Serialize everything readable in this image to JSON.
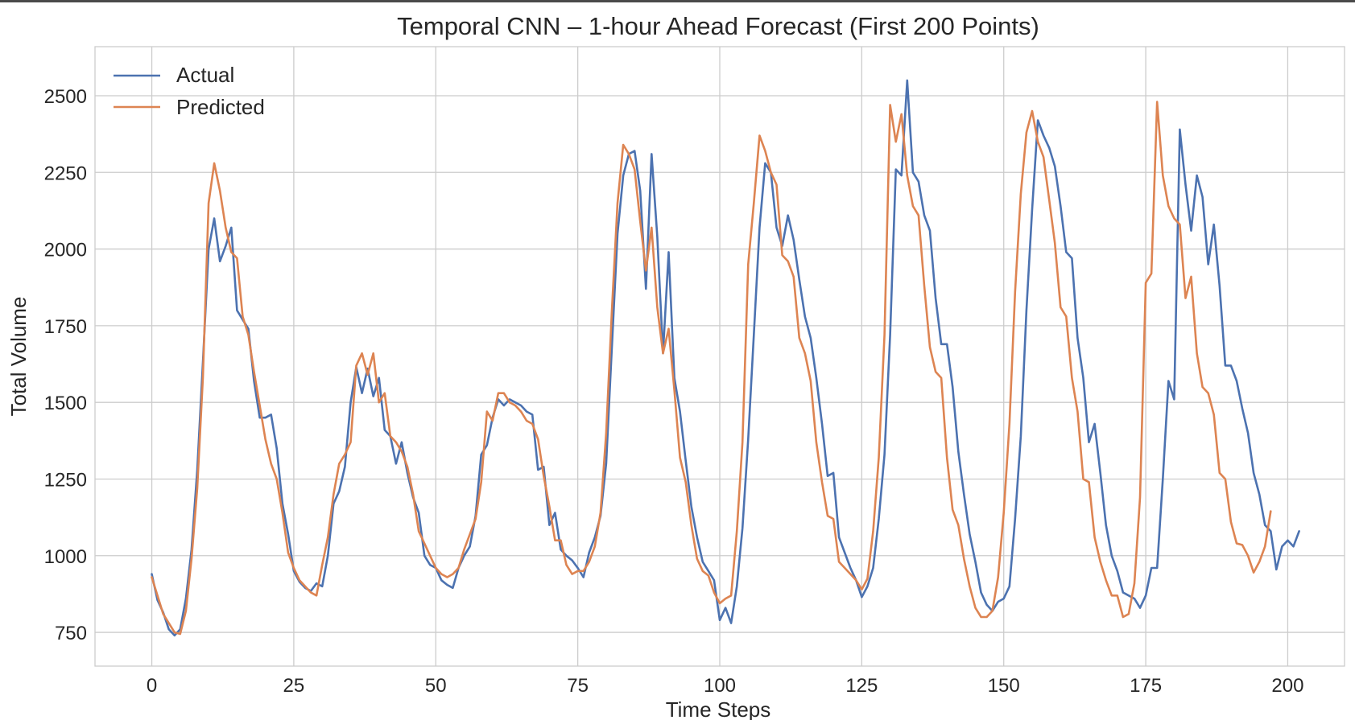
{
  "chart_data": {
    "type": "line",
    "title": "Temporal CNN – 1-hour Ahead Forecast (First 200 Points)",
    "xlabel": "Time Steps",
    "ylabel": "Total Volume",
    "xlim": [
      -10,
      210
    ],
    "ylim": [
      640,
      2660
    ],
    "xticks": [
      0,
      25,
      50,
      75,
      100,
      125,
      150,
      175,
      200
    ],
    "yticks": [
      750,
      1000,
      1250,
      1500,
      1750,
      2000,
      2250,
      2500
    ],
    "grid": true,
    "legend_position": "top-left",
    "series": [
      {
        "name": "Actual",
        "color": "#4c72b0",
        "values": [
          940,
          855,
          815,
          760,
          740,
          760,
          860,
          1020,
          1280,
          1630,
          2000,
          2100,
          1960,
          2010,
          2070,
          1800,
          1770,
          1740,
          1570,
          1450,
          1450,
          1460,
          1350,
          1170,
          1070,
          950,
          915,
          895,
          885,
          910,
          900,
          1000,
          1170,
          1210,
          1290,
          1500,
          1615,
          1530,
          1610,
          1520,
          1580,
          1410,
          1390,
          1300,
          1370,
          1270,
          1190,
          1140,
          1000,
          970,
          960,
          920,
          905,
          895,
          960,
          1000,
          1030,
          1130,
          1330,
          1360,
          1450,
          1510,
          1490,
          1510,
          1500,
          1490,
          1470,
          1460,
          1280,
          1290,
          1100,
          1140,
          1020,
          1000,
          985,
          960,
          930,
          1010,
          1060,
          1130,
          1300,
          1680,
          2050,
          2240,
          2310,
          2320,
          2190,
          1870,
          2310,
          2040,
          1660,
          1990,
          1580,
          1470,
          1310,
          1160,
          1060,
          980,
          950,
          920,
          790,
          830,
          780,
          900,
          1090,
          1380,
          1720,
          2070,
          2280,
          2250,
          2070,
          2010,
          2110,
          2030,
          1900,
          1780,
          1710,
          1580,
          1430,
          1260,
          1270,
          1060,
          1010,
          960,
          920,
          865,
          900,
          960,
          1120,
          1330,
          1720,
          2260,
          2240,
          2550,
          2250,
          2220,
          2110,
          2060,
          1840,
          1690,
          1690,
          1550,
          1340,
          1200,
          1070,
          980,
          880,
          840,
          820,
          850,
          860,
          900,
          1120,
          1390,
          1800,
          2130,
          2420,
          2370,
          2330,
          2270,
          2140,
          1990,
          1970,
          1710,
          1580,
          1370,
          1430,
          1270,
          1100,
          1000,
          950,
          880,
          870,
          860,
          830,
          870,
          960,
          960,
          1250,
          1570,
          1510,
          2390,
          2210,
          2060,
          2240,
          2170,
          1950,
          2080,
          1880,
          1620,
          1620,
          1570,
          1480,
          1400,
          1270,
          1200,
          1100,
          1080,
          955,
          1030,
          1050,
          1030,
          1080
        ]
      },
      {
        "name": "Predicted",
        "color": "#dd8452",
        "values": [
          930,
          870,
          810,
          780,
          750,
          745,
          820,
          990,
          1220,
          1580,
          2150,
          2280,
          2190,
          2070,
          1990,
          1970,
          1780,
          1720,
          1600,
          1490,
          1380,
          1300,
          1250,
          1140,
          1010,
          960,
          920,
          900,
          880,
          870,
          970,
          1060,
          1200,
          1300,
          1330,
          1370,
          1620,
          1660,
          1590,
          1660,
          1500,
          1530,
          1390,
          1370,
          1340,
          1290,
          1200,
          1080,
          1040,
          1000,
          960,
          940,
          930,
          940,
          960,
          1020,
          1070,
          1120,
          1240,
          1470,
          1440,
          1530,
          1530,
          1500,
          1490,
          1470,
          1440,
          1430,
          1380,
          1260,
          1160,
          1050,
          1050,
          970,
          940,
          950,
          950,
          980,
          1030,
          1140,
          1400,
          1800,
          2150,
          2340,
          2310,
          2260,
          2090,
          1930,
          2070,
          1810,
          1660,
          1740,
          1540,
          1320,
          1240,
          1100,
          990,
          950,
          935,
          880,
          845,
          860,
          870,
          1080,
          1370,
          1950,
          2150,
          2370,
          2320,
          2250,
          2210,
          1980,
          1960,
          1910,
          1710,
          1660,
          1570,
          1370,
          1240,
          1130,
          1120,
          980,
          960,
          940,
          920,
          890,
          925,
          1080,
          1320,
          1720,
          2470,
          2350,
          2440,
          2240,
          2140,
          2110,
          1880,
          1680,
          1600,
          1580,
          1320,
          1150,
          1100,
          990,
          900,
          830,
          800,
          800,
          820,
          930,
          1140,
          1430,
          1860,
          2180,
          2380,
          2450,
          2350,
          2300,
          2160,
          2020,
          1810,
          1780,
          1580,
          1470,
          1250,
          1240,
          1060,
          980,
          920,
          870,
          870,
          800,
          810,
          910,
          1190,
          1890,
          1920,
          2480,
          2240,
          2140,
          2100,
          2080,
          1840,
          1910,
          1660,
          1550,
          1530,
          1460,
          1270,
          1250,
          1110,
          1040,
          1035,
          1000,
          945,
          980,
          1030,
          1145
        ]
      }
    ]
  }
}
